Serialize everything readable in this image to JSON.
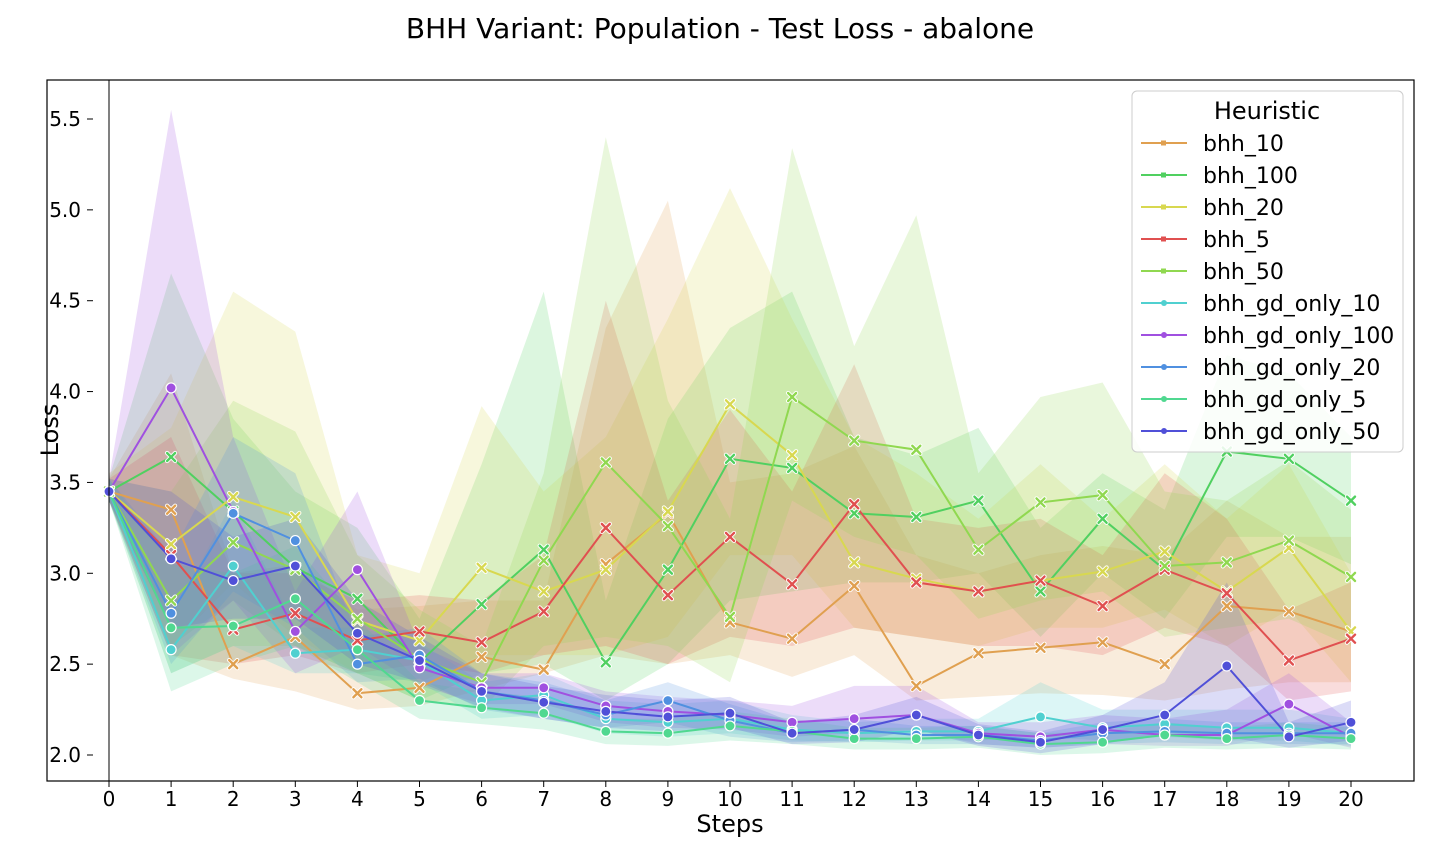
{
  "chart_data": {
    "type": "line",
    "title": "BHH Variant: Population - Test Loss - abalone",
    "xlabel": "Steps",
    "ylabel": "Loss",
    "xlim": [
      -1,
      21
    ],
    "ylim": [
      1.86,
      5.72
    ],
    "x": [
      0,
      1,
      2,
      3,
      4,
      5,
      6,
      7,
      8,
      9,
      10,
      11,
      12,
      13,
      14,
      15,
      16,
      17,
      18,
      19,
      20
    ],
    "xticks": [
      "0",
      "1",
      "2",
      "3",
      "4",
      "5",
      "6",
      "7",
      "8",
      "9",
      "10",
      "11",
      "12",
      "13",
      "14",
      "15",
      "16",
      "17",
      "18",
      "19",
      "20"
    ],
    "yticks": [
      2.0,
      2.5,
      3.0,
      3.5,
      4.0,
      4.5,
      5.0,
      5.5
    ],
    "ytick_labels": [
      "2.0",
      "2.5",
      "3.0",
      "3.5",
      "4.0",
      "4.5",
      "5.0",
      "5.5"
    ],
    "legend_title": "Heuristic",
    "legend_position": "top-right",
    "grid": false,
    "series": [
      {
        "name": "bhh_10",
        "color": "#e0a050",
        "marker": "x",
        "values": [
          3.45,
          3.35,
          2.5,
          2.65,
          2.34,
          2.37,
          2.54,
          2.47,
          3.05,
          3.33,
          2.73,
          2.64,
          2.93,
          2.38,
          2.56,
          2.59,
          2.62,
          2.5,
          2.82,
          2.79,
          2.68
        ],
        "lower": [
          3.4,
          2.55,
          2.42,
          2.35,
          2.25,
          2.27,
          2.36,
          2.45,
          2.55,
          2.5,
          2.55,
          2.43,
          2.55,
          2.3,
          2.32,
          2.34,
          2.33,
          2.3,
          2.36,
          2.4,
          2.4
        ],
        "upper": [
          3.52,
          4.1,
          3.0,
          3.05,
          2.8,
          2.82,
          2.85,
          2.85,
          4.35,
          5.05,
          3.5,
          3.55,
          3.7,
          3.1,
          3.0,
          3.1,
          3.15,
          3.1,
          3.4,
          3.2,
          3.2
        ]
      },
      {
        "name": "bhh_100",
        "color": "#50d060",
        "marker": "x",
        "values": [
          3.45,
          3.64,
          3.34,
          3.03,
          2.86,
          2.51,
          2.83,
          3.13,
          2.51,
          3.02,
          3.63,
          3.58,
          3.33,
          3.31,
          3.4,
          2.9,
          3.3,
          3.02,
          3.67,
          3.63,
          3.4
        ],
        "lower": [
          3.4,
          2.6,
          2.85,
          2.6,
          2.45,
          2.3,
          2.45,
          2.5,
          2.3,
          2.5,
          2.85,
          2.9,
          2.95,
          2.95,
          3.0,
          2.65,
          3.0,
          2.75,
          3.2,
          3.2,
          3.05
        ],
        "upper": [
          3.52,
          4.65,
          3.85,
          3.45,
          3.25,
          2.75,
          3.6,
          4.55,
          2.85,
          3.85,
          4.35,
          4.55,
          3.75,
          3.65,
          3.8,
          3.25,
          3.55,
          3.35,
          4.2,
          4.1,
          3.75
        ]
      },
      {
        "name": "bhh_20",
        "color": "#d8d850",
        "marker": "x",
        "values": [
          3.45,
          3.16,
          3.42,
          3.31,
          2.74,
          2.63,
          3.03,
          2.9,
          3.02,
          3.34,
          3.93,
          3.65,
          3.06,
          2.97,
          2.9,
          2.96,
          3.01,
          3.12,
          2.9,
          3.14,
          2.68
        ],
        "lower": [
          3.4,
          2.6,
          2.95,
          2.65,
          2.45,
          2.4,
          2.55,
          2.55,
          2.55,
          2.65,
          3.1,
          3.1,
          2.7,
          2.65,
          2.6,
          2.7,
          2.7,
          2.8,
          2.6,
          2.8,
          2.4
        ],
        "upper": [
          3.55,
          3.8,
          4.55,
          4.33,
          3.1,
          3.0,
          3.92,
          3.45,
          3.75,
          4.4,
          5.12,
          4.4,
          3.75,
          3.55,
          3.3,
          3.6,
          3.3,
          3.6,
          3.3,
          3.6,
          3.0
        ]
      },
      {
        "name": "bhh_5",
        "color": "#e05050",
        "marker": "x",
        "values": [
          3.45,
          3.1,
          2.69,
          2.78,
          2.63,
          2.68,
          2.62,
          2.79,
          3.25,
          2.88,
          3.2,
          2.94,
          3.38,
          2.95,
          2.9,
          2.96,
          2.82,
          3.02,
          2.89,
          2.52,
          2.64
        ],
        "lower": [
          3.4,
          2.55,
          2.5,
          2.55,
          2.45,
          2.5,
          2.45,
          2.55,
          2.6,
          2.5,
          2.65,
          2.6,
          2.7,
          2.65,
          2.6,
          2.6,
          2.55,
          2.7,
          2.6,
          2.3,
          2.35
        ],
        "upper": [
          3.52,
          3.75,
          3.0,
          3.0,
          2.85,
          2.88,
          2.85,
          3.1,
          4.5,
          3.4,
          3.9,
          3.45,
          4.15,
          3.3,
          3.25,
          3.3,
          3.1,
          3.55,
          3.3,
          2.8,
          2.95
        ]
      },
      {
        "name": "bhh_50",
        "color": "#90d850",
        "marker": "x",
        "values": [
          3.45,
          2.85,
          3.17,
          3.02,
          2.75,
          2.53,
          2.4,
          3.07,
          3.61,
          3.26,
          2.76,
          3.97,
          3.73,
          3.68,
          3.13,
          3.39,
          3.43,
          3.04,
          3.06,
          3.18,
          2.98
        ],
        "lower": [
          3.4,
          2.45,
          2.6,
          2.6,
          2.45,
          2.3,
          2.25,
          2.6,
          2.65,
          2.6,
          2.4,
          3.4,
          3.2,
          3.1,
          2.75,
          2.85,
          2.9,
          2.65,
          2.7,
          2.75,
          2.6
        ],
        "upper": [
          3.52,
          3.45,
          3.95,
          3.78,
          3.1,
          2.8,
          2.6,
          3.55,
          5.4,
          3.95,
          3.3,
          5.34,
          4.25,
          4.97,
          3.55,
          3.97,
          4.05,
          3.45,
          3.4,
          3.62,
          3.35
        ]
      },
      {
        "name": "bhh_gd_only_10",
        "color": "#50d0d0",
        "marker": "o",
        "values": [
          3.45,
          2.58,
          3.04,
          2.56,
          2.58,
          2.52,
          2.3,
          2.33,
          2.2,
          2.18,
          2.2,
          2.14,
          2.12,
          2.13,
          2.13,
          2.21,
          2.15,
          2.17,
          2.15,
          2.15,
          2.12
        ],
        "lower": [
          3.4,
          2.45,
          2.6,
          2.45,
          2.45,
          2.4,
          2.2,
          2.22,
          2.12,
          2.1,
          2.12,
          2.08,
          2.07,
          2.08,
          2.08,
          2.1,
          2.08,
          2.1,
          2.08,
          2.08,
          2.05
        ],
        "upper": [
          3.52,
          2.75,
          3.4,
          2.7,
          2.7,
          2.62,
          2.4,
          2.45,
          2.3,
          2.28,
          2.3,
          2.22,
          2.18,
          2.2,
          2.2,
          2.4,
          2.25,
          2.25,
          2.25,
          2.25,
          2.2
        ]
      },
      {
        "name": "bhh_gd_only_100",
        "color": "#a050e0",
        "marker": "o",
        "values": [
          3.45,
          4.02,
          3.34,
          2.68,
          3.02,
          2.48,
          2.37,
          2.37,
          2.27,
          2.24,
          2.22,
          2.18,
          2.2,
          2.22,
          2.12,
          2.1,
          2.14,
          2.11,
          2.11,
          2.28,
          2.1
        ],
        "lower": [
          3.4,
          2.55,
          2.85,
          2.45,
          2.6,
          2.38,
          2.28,
          2.28,
          2.18,
          2.15,
          2.14,
          2.1,
          2.12,
          2.14,
          2.06,
          2.04,
          2.06,
          2.05,
          2.05,
          2.12,
          2.04
        ],
        "upper": [
          3.52,
          5.55,
          3.75,
          2.9,
          3.45,
          2.6,
          2.45,
          2.45,
          2.35,
          2.32,
          2.3,
          2.27,
          2.38,
          2.38,
          2.18,
          2.18,
          2.22,
          2.2,
          2.25,
          2.45,
          2.18
        ]
      },
      {
        "name": "bhh_gd_only_20",
        "color": "#5090e0",
        "marker": "o",
        "values": [
          3.45,
          2.78,
          3.33,
          3.18,
          2.5,
          2.55,
          2.35,
          2.3,
          2.22,
          2.3,
          2.19,
          2.12,
          2.14,
          2.11,
          2.11,
          2.08,
          2.12,
          2.13,
          2.12,
          2.12,
          2.12
        ],
        "lower": [
          3.4,
          2.5,
          2.9,
          2.7,
          2.4,
          2.42,
          2.25,
          2.2,
          2.15,
          2.18,
          2.1,
          2.07,
          2.08,
          2.06,
          2.06,
          2.04,
          2.06,
          2.07,
          2.06,
          2.06,
          2.06
        ],
        "upper": [
          3.52,
          3.1,
          3.75,
          3.55,
          2.65,
          2.7,
          2.45,
          2.4,
          2.3,
          2.4,
          2.28,
          2.18,
          2.2,
          2.16,
          2.16,
          2.12,
          2.18,
          2.2,
          2.18,
          2.18,
          2.18
        ]
      },
      {
        "name": "bhh_gd_only_5",
        "color": "#50d890",
        "marker": "o",
        "values": [
          3.45,
          2.7,
          2.71,
          2.86,
          2.58,
          2.3,
          2.26,
          2.23,
          2.13,
          2.12,
          2.16,
          2.13,
          2.09,
          2.09,
          2.1,
          2.06,
          2.07,
          2.11,
          2.09,
          2.11,
          2.09
        ],
        "lower": [
          3.4,
          2.35,
          2.5,
          2.6,
          2.4,
          2.2,
          2.17,
          2.14,
          2.06,
          2.05,
          2.08,
          2.06,
          2.03,
          2.03,
          2.04,
          2.0,
          2.01,
          2.04,
          2.03,
          2.04,
          2.03
        ],
        "upper": [
          3.52,
          3.05,
          3.0,
          3.15,
          2.75,
          2.4,
          2.35,
          2.32,
          2.2,
          2.2,
          2.24,
          2.2,
          2.15,
          2.15,
          2.16,
          2.12,
          2.13,
          2.18,
          2.15,
          2.18,
          2.15
        ]
      },
      {
        "name": "bhh_gd_only_50",
        "color": "#5050d8",
        "marker": "o",
        "values": [
          3.45,
          3.08,
          2.96,
          3.04,
          2.67,
          2.52,
          2.35,
          2.29,
          2.24,
          2.21,
          2.23,
          2.12,
          2.14,
          2.22,
          2.11,
          2.07,
          2.14,
          2.22,
          2.49,
          2.1,
          2.18
        ],
        "lower": [
          3.4,
          2.7,
          2.75,
          2.75,
          2.5,
          2.4,
          2.26,
          2.2,
          2.15,
          2.13,
          2.15,
          2.06,
          2.07,
          2.14,
          2.05,
          2.01,
          2.06,
          2.12,
          2.1,
          2.04,
          2.08
        ],
        "upper": [
          3.52,
          3.45,
          3.2,
          3.3,
          2.85,
          2.65,
          2.45,
          2.38,
          2.33,
          2.3,
          2.32,
          2.18,
          2.22,
          2.32,
          2.17,
          2.13,
          2.22,
          2.4,
          2.95,
          2.18,
          2.3
        ]
      }
    ]
  }
}
